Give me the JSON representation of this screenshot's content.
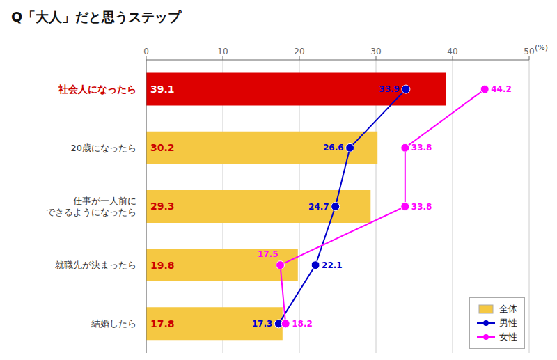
{
  "chart_data": {
    "type": "bar",
    "orientation": "horizontal",
    "title": "Q「大人」だと思うステップ",
    "categories": [
      "社会人になったら",
      "20歳になったら",
      "仕事が一人前に\nできるようになったら",
      "就職先が決まったら",
      "結婚したら"
    ],
    "series": [
      {
        "name": "全体",
        "type": "bar",
        "color": "#f5c842",
        "colors": [
          "#dd0000",
          "#f5c842",
          "#f5c842",
          "#f5c842",
          "#f5c842"
        ],
        "values": [
          39.1,
          30.2,
          29.3,
          19.8,
          17.8
        ],
        "data_labels": true
      },
      {
        "name": "男性",
        "type": "line",
        "color": "#0000cc",
        "marker": "circle",
        "values": [
          33.9,
          26.6,
          24.7,
          22.1,
          17.3
        ],
        "data_labels": true
      },
      {
        "name": "女性",
        "type": "line",
        "color": "#ff00ff",
        "marker": "circle",
        "values": [
          44.2,
          33.8,
          33.8,
          17.5,
          18.2
        ],
        "data_labels": true
      }
    ],
    "xlim": [
      0,
      50
    ],
    "xticks": [
      0,
      10,
      20,
      30,
      40,
      50
    ],
    "grid": true,
    "legend": "lower right",
    "annotations": [
      "(%)"
    ]
  }
}
